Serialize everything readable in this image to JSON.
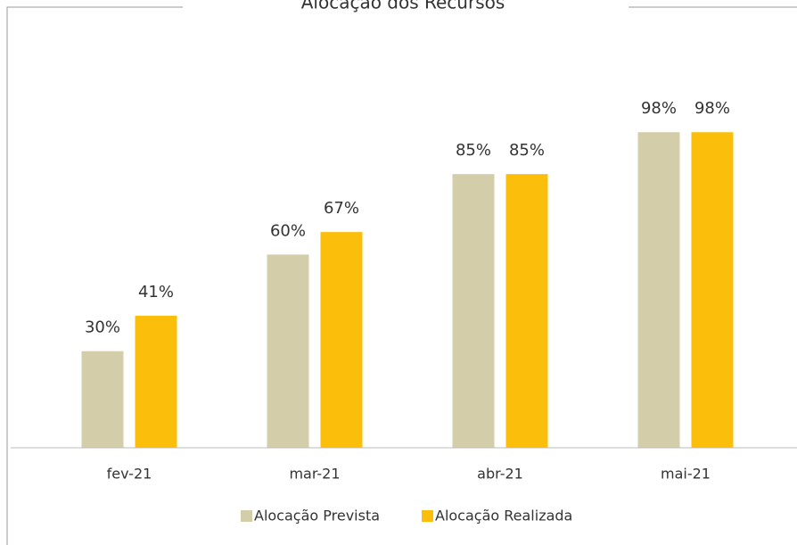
{
  "chart_data": {
    "type": "bar",
    "title": "Alocação dos Recursos",
    "categories": [
      "fev-21",
      "mar-21",
      "abr-21",
      "mai-21"
    ],
    "series": [
      {
        "name": "Alocação Prevista",
        "color": "#d3cea9",
        "values": [
          30,
          60,
          85,
          98
        ],
        "value_labels": [
          "30%",
          "60%",
          "85%",
          "98%"
        ]
      },
      {
        "name": "Alocação Realizada",
        "color": "#fbbf0b",
        "values": [
          41,
          67,
          85,
          98
        ],
        "value_labels": [
          "41%",
          "67%",
          "85%",
          "98%"
        ]
      }
    ],
    "ylim": [
      0,
      100
    ]
  }
}
